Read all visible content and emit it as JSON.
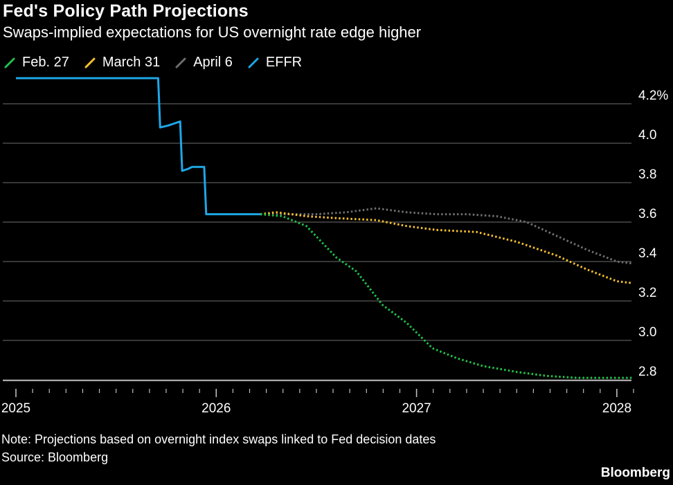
{
  "title": "Fed's Policy Path Projections",
  "subtitle": "Swaps-implied expectations for US overnight rate edge higher",
  "note": "Note: Projections based on overnight index swaps linked to Fed decision dates",
  "source": "Source: Bloomberg",
  "brand": "Bloomberg",
  "colors": {
    "feb27": "#22c24a",
    "march31": "#f5c02f",
    "april6": "#6e6e6e",
    "effr": "#1ea7e6",
    "grid": "#5a5a5a",
    "background": "#000000"
  },
  "legend": [
    {
      "key": "feb27",
      "label": "Feb. 27",
      "icon": "diagonal-line-icon"
    },
    {
      "key": "march31",
      "label": "March 31",
      "icon": "diagonal-line-icon"
    },
    {
      "key": "april6",
      "label": "April 6",
      "icon": "diagonal-line-icon"
    },
    {
      "key": "effr",
      "label": "EFFR",
      "icon": "diagonal-line-icon"
    }
  ],
  "chart_data": {
    "type": "line",
    "title": "Fed's Policy Path Projections",
    "subtitle": "Swaps-implied expectations for US overnight rate edge higher",
    "x_unit": "year",
    "xlim": [
      2025.0,
      2028.1
    ],
    "ylim": [
      2.75,
      4.25
    ],
    "y_ticks": [
      {
        "value": 4.2,
        "label": "4.2%"
      },
      {
        "value": 4.0,
        "label": "4.0"
      },
      {
        "value": 3.8,
        "label": "3.8"
      },
      {
        "value": 3.6,
        "label": "3.6"
      },
      {
        "value": 3.4,
        "label": "3.4"
      },
      {
        "value": 3.2,
        "label": "3.2"
      },
      {
        "value": 3.0,
        "label": "3.0"
      },
      {
        "value": 2.8,
        "label": "2.8"
      }
    ],
    "x_ticks": [
      {
        "value": 2025,
        "label": "2025"
      },
      {
        "value": 2026,
        "label": "2026"
      },
      {
        "value": 2027,
        "label": "2027"
      },
      {
        "value": 2028,
        "label": "2028"
      }
    ],
    "grid": true,
    "legend_position": "top-left",
    "series": [
      {
        "name": "EFFR",
        "key": "effr",
        "style": "solid",
        "points": [
          [
            2025.0,
            4.33
          ],
          [
            2025.71,
            4.33
          ],
          [
            2025.72,
            4.08
          ],
          [
            2025.76,
            4.09
          ],
          [
            2025.79,
            4.1
          ],
          [
            2025.82,
            4.11
          ],
          [
            2025.83,
            3.86
          ],
          [
            2025.86,
            3.87
          ],
          [
            2025.88,
            3.88
          ],
          [
            2025.94,
            3.88
          ],
          [
            2025.95,
            3.64
          ],
          [
            2026.22,
            3.64
          ]
        ]
      },
      {
        "name": "Feb. 27",
        "key": "feb27",
        "style": "dotted",
        "points": [
          [
            2026.22,
            3.64
          ],
          [
            2026.33,
            3.63
          ],
          [
            2026.45,
            3.58
          ],
          [
            2026.6,
            3.42
          ],
          [
            2026.7,
            3.35
          ],
          [
            2026.83,
            3.18
          ],
          [
            2026.95,
            3.09
          ],
          [
            2027.08,
            2.96
          ],
          [
            2027.2,
            2.91
          ],
          [
            2027.33,
            2.87
          ],
          [
            2027.5,
            2.84
          ],
          [
            2027.65,
            2.82
          ],
          [
            2027.8,
            2.81
          ],
          [
            2028.0,
            2.81
          ],
          [
            2028.08,
            2.81
          ]
        ]
      },
      {
        "name": "March 31",
        "key": "march31",
        "style": "dotted",
        "points": [
          [
            2026.22,
            3.64
          ],
          [
            2026.3,
            3.65
          ],
          [
            2026.45,
            3.63
          ],
          [
            2026.6,
            3.62
          ],
          [
            2026.8,
            3.61
          ],
          [
            2026.95,
            3.58
          ],
          [
            2027.1,
            3.56
          ],
          [
            2027.3,
            3.55
          ],
          [
            2027.5,
            3.5
          ],
          [
            2027.7,
            3.43
          ],
          [
            2027.85,
            3.36
          ],
          [
            2028.0,
            3.3
          ],
          [
            2028.08,
            3.29
          ]
        ]
      },
      {
        "name": "April 6",
        "key": "april6",
        "style": "dotted",
        "points": [
          [
            2026.22,
            3.64
          ],
          [
            2026.35,
            3.64
          ],
          [
            2026.5,
            3.64
          ],
          [
            2026.65,
            3.65
          ],
          [
            2026.8,
            3.67
          ],
          [
            2026.95,
            3.65
          ],
          [
            2027.1,
            3.64
          ],
          [
            2027.25,
            3.64
          ],
          [
            2027.4,
            3.63
          ],
          [
            2027.55,
            3.6
          ],
          [
            2027.7,
            3.53
          ],
          [
            2027.85,
            3.46
          ],
          [
            2028.0,
            3.4
          ],
          [
            2028.08,
            3.39
          ]
        ]
      }
    ]
  }
}
